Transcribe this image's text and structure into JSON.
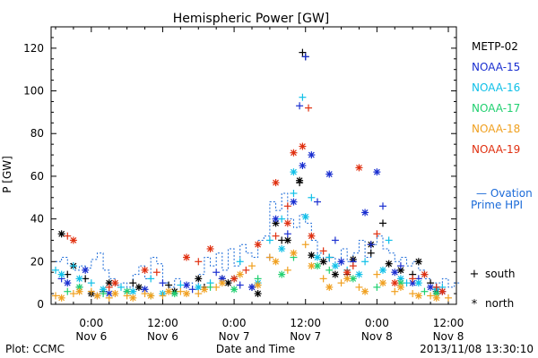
{
  "chart_data": {
    "type": "scatter",
    "title": "Hemispheric Power [GW]",
    "ylabel": "P [GW]",
    "xlabel": "Date and Time",
    "ylim": [
      0,
      130
    ],
    "yticks": [
      0,
      20,
      40,
      60,
      80,
      100,
      120
    ],
    "x_unit": "hours since 2013-11-05 18:00 UT",
    "xlim": [
      0,
      66
    ],
    "xticks": [
      {
        "x": 6,
        "time": "0:00",
        "date": "Nov 6"
      },
      {
        "x": 18,
        "time": "12:00",
        "date": "Nov 6"
      },
      {
        "x": 30,
        "time": "0:00",
        "date": "Nov 7"
      },
      {
        "x": 42,
        "time": "12:00",
        "date": "Nov 7"
      },
      {
        "x": 54,
        "time": "0:00",
        "date": "Nov 8"
      },
      {
        "x": 66,
        "time": "12:00",
        "date": "Nov 8"
      }
    ],
    "legend": {
      "placement": "right",
      "satellites": [
        {
          "name": "METP-02",
          "color": "#000000"
        },
        {
          "name": "NOAA-15",
          "color": "#1a2fd0"
        },
        {
          "name": "NOAA-16",
          "color": "#10c0e8"
        },
        {
          "name": "NOAA-17",
          "color": "#20d070"
        },
        {
          "name": "NOAA-18",
          "color": "#f0a020"
        },
        {
          "name": "NOAA-19",
          "color": "#e03010"
        }
      ],
      "ovation_line1": "— Ovation",
      "ovation_line2": "Prime HPI",
      "ovation_color": "#1a6ad8",
      "south_label": "south",
      "north_label": "north"
    },
    "ovation": {
      "x": [
        0,
        1,
        2,
        3,
        4,
        5,
        6,
        7,
        8,
        9,
        10,
        11,
        12,
        13,
        14,
        15,
        16,
        17,
        18,
        19,
        20,
        21,
        22,
        23,
        24,
        25,
        26,
        27,
        28,
        29,
        30,
        31,
        32,
        33,
        34,
        35,
        36,
        37,
        38,
        39,
        40,
        41,
        42,
        43,
        44,
        45,
        46,
        47,
        48,
        49,
        50,
        51,
        52,
        53,
        54,
        55,
        56,
        57,
        58,
        59,
        60,
        61,
        62,
        63,
        64,
        65,
        66,
        67
      ],
      "y": [
        20,
        22,
        19,
        16,
        18,
        17,
        21,
        24,
        16,
        12,
        9,
        10,
        8,
        14,
        18,
        12,
        22,
        19,
        10,
        8,
        12,
        9,
        10,
        7,
        14,
        22,
        18,
        24,
        16,
        26,
        18,
        28,
        24,
        22,
        30,
        32,
        48,
        44,
        52,
        40,
        36,
        42,
        38,
        30,
        24,
        20,
        22,
        18,
        26,
        20,
        24,
        30,
        22,
        28,
        32,
        26,
        24,
        20,
        22,
        18,
        20,
        16,
        12,
        10,
        10,
        12,
        8,
        10
      ]
    },
    "series": [
      {
        "name": "METP-02",
        "hemisphere": "south",
        "x": [
          2,
          5,
          8,
          13,
          19,
          25,
          28,
          33,
          38,
          41,
          41.5,
          42,
          46,
          49,
          53,
          55,
          60,
          63
        ],
        "y": [
          14,
          12,
          6,
          10,
          9,
          8,
          12,
          8,
          30,
          57,
          118,
          116,
          22,
          14,
          24,
          38,
          14,
          10
        ]
      },
      {
        "name": "METP-02",
        "hemisphere": "north",
        "x": [
          1,
          3,
          6,
          9,
          14,
          20,
          24,
          29,
          34,
          37,
          39,
          41,
          43,
          45,
          47,
          50,
          53,
          56,
          58,
          61,
          64
        ],
        "y": [
          33,
          18,
          5,
          10,
          8,
          6,
          12,
          10,
          5,
          38,
          30,
          58,
          23,
          20,
          14,
          21,
          28,
          19,
          16,
          20,
          6
        ]
      },
      {
        "name": "NOAA-15",
        "hemisphere": "south",
        "x": [
          1,
          4,
          7,
          12,
          18,
          23,
          27,
          31,
          36,
          39,
          41,
          42,
          44,
          47,
          50,
          53,
          55,
          58,
          61,
          64
        ],
        "y": [
          12,
          8,
          4,
          6,
          10,
          7,
          15,
          9,
          22,
          33,
          93,
          116,
          48,
          30,
          20,
          28,
          46,
          18,
          12,
          8
        ]
      },
      {
        "name": "NOAA-15",
        "hemisphere": "north",
        "x": [
          2,
          5,
          9,
          15,
          22,
          28,
          33,
          37,
          40,
          41.5,
          43,
          46,
          48,
          52,
          54,
          57,
          60,
          63,
          65
        ],
        "y": [
          10,
          16,
          5,
          7,
          9,
          12,
          8,
          40,
          48,
          65,
          70,
          61,
          20,
          43,
          62,
          15,
          10,
          8,
          6
        ]
      },
      {
        "name": "NOAA-16",
        "hemisphere": "south",
        "x": [
          0,
          3,
          6,
          11,
          16,
          21,
          26,
          31,
          36,
          38,
          40,
          41.5,
          43,
          46,
          49,
          52,
          56,
          59,
          62,
          65
        ],
        "y": [
          16,
          18,
          10,
          8,
          12,
          9,
          10,
          20,
          30,
          40,
          52,
          97,
          50,
          22,
          16,
          20,
          30,
          10,
          14,
          8
        ]
      },
      {
        "name": "NOAA-16",
        "hemisphere": "north",
        "x": [
          1,
          4,
          8,
          13,
          18,
          24,
          30,
          34,
          38,
          40,
          42,
          44,
          47,
          51,
          55,
          58,
          61,
          64
        ],
        "y": [
          14,
          12,
          7,
          6,
          5,
          8,
          12,
          10,
          26,
          62,
          41,
          22,
          18,
          14,
          16,
          12,
          10,
          7
        ]
      },
      {
        "name": "NOAA-17",
        "hemisphere": "south",
        "x": [
          2,
          8,
          16,
          26,
          34,
          40,
          46,
          54,
          62
        ],
        "y": [
          6,
          5,
          4,
          8,
          12,
          22,
          16,
          8,
          6
        ]
      },
      {
        "name": "NOAA-17",
        "hemisphere": "north",
        "x": [
          4,
          12,
          20,
          30,
          38,
          44,
          50,
          58,
          64
        ],
        "y": [
          8,
          6,
          5,
          7,
          14,
          18,
          12,
          10,
          5
        ]
      },
      {
        "name": "NOAA-18",
        "hemisphere": "south",
        "x": [
          0,
          3,
          6,
          9,
          12,
          15,
          18,
          21,
          24,
          27,
          30,
          33,
          36,
          39,
          42,
          45,
          48,
          51,
          54,
          57,
          60,
          63,
          66
        ],
        "y": [
          4,
          5,
          6,
          3,
          4,
          5,
          4,
          6,
          5,
          8,
          12,
          18,
          22,
          16,
          28,
          12,
          10,
          8,
          14,
          6,
          5,
          4,
          3
        ]
      },
      {
        "name": "NOAA-18",
        "hemisphere": "north",
        "x": [
          1,
          4,
          7,
          10,
          13,
          16,
          19,
          22,
          25,
          28,
          31,
          34,
          37,
          40,
          43,
          46,
          49,
          52,
          55,
          58,
          61,
          64
        ],
        "y": [
          3,
          6,
          4,
          5,
          3,
          4,
          6,
          5,
          7,
          10,
          14,
          9,
          20,
          24,
          18,
          8,
          12,
          6,
          10,
          8,
          4,
          3
        ]
      },
      {
        "name": "NOAA-19",
        "hemisphere": "south",
        "x": [
          2,
          9,
          17,
          24,
          32,
          37,
          39,
          42.5,
          45,
          50,
          54,
          60,
          64
        ],
        "y": [
          32,
          8,
          15,
          20,
          16,
          32,
          46,
          92,
          25,
          18,
          33,
          12,
          8
        ]
      },
      {
        "name": "NOAA-19",
        "hemisphere": "north",
        "x": [
          3,
          10,
          15,
          22,
          26,
          30,
          34,
          37,
          39,
          40,
          41.5,
          43,
          49,
          51,
          57,
          62,
          65
        ],
        "y": [
          30,
          10,
          16,
          22,
          26,
          12,
          28,
          57,
          38,
          71,
          74,
          32,
          15,
          64,
          10,
          14,
          6
        ]
      }
    ]
  },
  "footer": {
    "left": "Plot: CCMC",
    "center": "Date and Time",
    "right": "2013/11/08 13:30:10"
  }
}
